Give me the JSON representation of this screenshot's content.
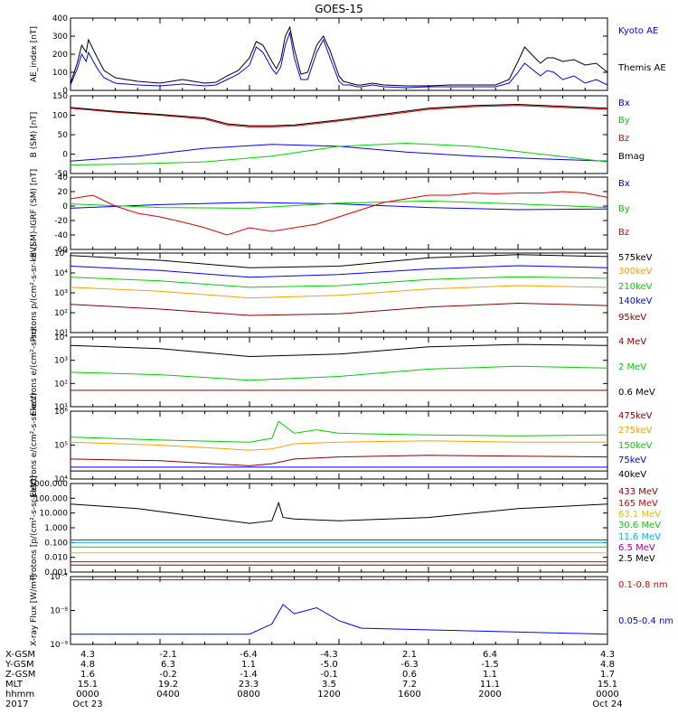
{
  "title": "GOES-15",
  "colors": {
    "black": "#000000",
    "blue": "#0000ff",
    "red": "#e00000",
    "green": "#00d000",
    "orange": "#ffa000",
    "darkred": "#8b0000",
    "cyan": "#00b0ff",
    "yellowgreen": "#a0e000",
    "purple": "#a000a0",
    "brown": "#a06000",
    "darkblue": "#2020c0",
    "gold": "#e0c000"
  },
  "chart_data": [
    {
      "type": "line",
      "ylabel": "AE_index [nT]",
      "ylim": [
        0,
        400
      ],
      "yticks": [
        "400",
        "300",
        "200",
        "100",
        "0"
      ],
      "series": [
        {
          "name": "Kyoto AE",
          "color": "blue",
          "x": [
            0,
            0.3,
            0.5,
            0.7,
            0.8,
            1.2,
            1.5,
            2,
            3,
            4,
            5,
            6,
            6.5,
            7,
            7.5,
            8,
            8.3,
            8.6,
            9,
            9.2,
            9.4,
            9.6,
            9.8,
            10,
            10.3,
            10.6,
            11,
            11.3,
            11.6,
            12,
            12.2,
            12.5,
            12.8,
            13,
            13.5,
            14,
            15,
            16,
            17,
            18,
            19,
            19.6,
            20,
            20.3,
            20.6,
            21,
            21.3,
            21.6,
            22,
            22.5,
            23,
            23.5,
            24
          ],
          "y": [
            30,
            120,
            200,
            160,
            210,
            120,
            70,
            40,
            30,
            25,
            35,
            25,
            30,
            60,
            90,
            140,
            240,
            210,
            120,
            90,
            130,
            250,
            320,
            180,
            60,
            60,
            210,
            280,
            180,
            50,
            30,
            30,
            20,
            20,
            30,
            20,
            15,
            20,
            20,
            20,
            20,
            40,
            100,
            150,
            120,
            80,
            110,
            100,
            60,
            80,
            40,
            60,
            30
          ]
        },
        {
          "name": "Themis AE",
          "color": "black",
          "x": [
            0,
            0.3,
            0.5,
            0.7,
            0.8,
            1.2,
            1.5,
            2,
            3,
            4,
            5,
            6,
            6.5,
            7,
            7.5,
            8,
            8.3,
            8.6,
            9,
            9.2,
            9.4,
            9.6,
            9.8,
            10,
            10.3,
            10.6,
            11,
            11.3,
            11.6,
            12,
            12.2,
            12.5,
            12.8,
            13,
            13.5,
            14,
            15,
            16,
            17,
            18,
            19,
            19.6,
            20,
            20.3,
            20.6,
            21,
            21.3,
            21.6,
            22,
            22.5,
            23,
            23.5,
            24
          ],
          "y": [
            40,
            150,
            250,
            210,
            280,
            180,
            110,
            70,
            50,
            40,
            60,
            40,
            45,
            80,
            110,
            180,
            270,
            250,
            160,
            120,
            170,
            300,
            350,
            230,
            90,
            100,
            250,
            300,
            220,
            80,
            50,
            40,
            30,
            30,
            40,
            30,
            25,
            25,
            30,
            30,
            30,
            60,
            160,
            240,
            200,
            150,
            180,
            180,
            160,
            170,
            140,
            150,
            100
          ]
        }
      ]
    },
    {
      "type": "line",
      "ylabel": "B (SM) [nT]",
      "ylim": [
        -50,
        150
      ],
      "yticks": [
        "150",
        "100",
        "50",
        "0",
        "-50"
      ],
      "series": [
        {
          "name": "Bx",
          "color": "blue",
          "x": [
            0,
            3,
            6,
            9,
            12,
            15,
            18,
            21,
            24
          ],
          "y": [
            -18,
            -5,
            15,
            25,
            20,
            5,
            -5,
            -12,
            -18
          ]
        },
        {
          "name": "By",
          "color": "green",
          "x": [
            0,
            3,
            6,
            9,
            12,
            15,
            18,
            21,
            24
          ],
          "y": [
            -28,
            -25,
            -20,
            -5,
            20,
            28,
            20,
            0,
            -20
          ]
        },
        {
          "name": "Bz",
          "color": "red",
          "x": [
            0,
            2,
            4,
            6,
            7,
            8,
            9,
            10,
            12,
            14,
            16,
            18,
            20,
            22,
            24
          ],
          "y": [
            118,
            108,
            100,
            90,
            75,
            70,
            70,
            72,
            85,
            100,
            115,
            122,
            125,
            120,
            115
          ]
        },
        {
          "name": "Bmag",
          "color": "black",
          "x": [
            0,
            2,
            4,
            6,
            7,
            8,
            9,
            10,
            12,
            14,
            16,
            18,
            20,
            22,
            24
          ],
          "y": [
            120,
            110,
            102,
            93,
            78,
            73,
            73,
            75,
            88,
            103,
            118,
            125,
            128,
            123,
            118
          ]
        }
      ]
    },
    {
      "type": "line",
      "ylabel": "B (SM)-IGRF (SM) [nT]",
      "ylim": [
        -60,
        40
      ],
      "yticks": [
        "40",
        "20",
        "0",
        "-20",
        "-40",
        "-60"
      ],
      "series": [
        {
          "name": "Bx",
          "color": "blue",
          "x": [
            0,
            4,
            8,
            12,
            16,
            20,
            24
          ],
          "y": [
            -3,
            2,
            5,
            3,
            -2,
            -5,
            -4
          ]
        },
        {
          "name": "By",
          "color": "green",
          "x": [
            0,
            4,
            8,
            12,
            16,
            20,
            24
          ],
          "y": [
            3,
            -2,
            -3,
            4,
            7,
            3,
            -2
          ]
        },
        {
          "name": "Bz",
          "color": "red",
          "x": [
            0,
            1,
            2,
            3,
            4,
            5,
            6,
            7,
            8,
            9,
            10,
            11,
            12,
            13,
            14,
            15,
            16,
            17,
            18,
            19,
            20,
            21,
            22,
            23,
            24
          ],
          "y": [
            10,
            15,
            0,
            -10,
            -15,
            -22,
            -30,
            -40,
            -30,
            -35,
            -30,
            -25,
            -15,
            -5,
            5,
            10,
            15,
            15,
            18,
            17,
            18,
            18,
            20,
            18,
            12
          ]
        }
      ]
    },
    {
      "type": "line",
      "ylabel": "Protons p/(cm²-s-sr-keV)",
      "yscale": "log",
      "ylim": [
        1,
        100000
      ],
      "yticks": [
        "10⁵",
        "10⁴",
        "10³",
        "10²",
        "10¹"
      ],
      "series": [
        {
          "name": "575keV",
          "color": "black",
          "x": [
            0,
            4,
            8,
            12,
            16,
            20,
            24
          ],
          "y": [
            70000,
            35000,
            12000,
            15000,
            50000,
            80000,
            60000
          ]
        },
        {
          "name": "300keV",
          "color": "orange",
          "x": [
            0,
            4,
            8,
            12,
            16,
            20,
            24
          ],
          "y": [
            700,
            400,
            150,
            220,
            550,
            900,
            700
          ]
        },
        {
          "name": "210keV",
          "color": "green",
          "x": [
            0,
            4,
            8,
            12,
            16,
            20,
            24
          ],
          "y": [
            3000,
            1800,
            700,
            900,
            2200,
            3200,
            2600
          ]
        },
        {
          "name": "140keV",
          "color": "blue",
          "x": [
            0,
            4,
            8,
            12,
            16,
            20,
            24
          ],
          "y": [
            15000,
            8000,
            3000,
            4500,
            10000,
            16000,
            12000
          ]
        },
        {
          "name": "95keV",
          "color": "darkred",
          "x": [
            0,
            4,
            8,
            12,
            16,
            20,
            24
          ],
          "y": [
            60,
            30,
            12,
            15,
            40,
            70,
            50
          ]
        }
      ]
    },
    {
      "type": "line",
      "ylabel": "Electrons e/(cm²-s-sr)",
      "yscale": "log",
      "ylim": [
        1,
        100000
      ],
      "yticks": [
        "10⁴",
        "10³",
        "10²",
        "10¹"
      ],
      "series": [
        {
          "name": "4 MeV",
          "color": "darkred",
          "x": [
            0,
            24
          ],
          "y": [
            15,
            15
          ]
        },
        {
          "name": "2 MeV",
          "color": "green",
          "x": [
            0,
            4,
            8,
            12,
            16,
            20,
            24
          ],
          "y": [
            300,
            200,
            80,
            150,
            500,
            800,
            600
          ]
        },
        {
          "name": "0.6 MeV",
          "color": "black",
          "x": [
            0,
            4,
            8,
            12,
            16,
            20,
            24
          ],
          "y": [
            25000,
            15000,
            4000,
            6000,
            20000,
            30000,
            25000
          ]
        }
      ]
    },
    {
      "type": "line",
      "ylabel": "Electrons e/(cm²-s-sr-keV)",
      "yscale": "log",
      "ylim": [
        1000,
        10000000
      ],
      "yticks": [
        "10⁶",
        "10⁵",
        "10⁴"
      ],
      "series": [
        {
          "name": "475keV",
          "color": "darkred",
          "x": [
            0,
            4,
            8,
            9,
            10,
            12,
            16,
            20,
            24
          ],
          "y": [
            15000,
            12000,
            6000,
            8000,
            15000,
            20000,
            25000,
            22000,
            20000
          ]
        },
        {
          "name": "275keV",
          "color": "orange",
          "x": [
            0,
            4,
            8,
            9,
            10,
            12,
            16,
            20,
            24
          ],
          "y": [
            150000,
            100000,
            50000,
            60000,
            120000,
            150000,
            180000,
            150000,
            150000
          ]
        },
        {
          "name": "150keV",
          "color": "green",
          "x": [
            0,
            4,
            8,
            9,
            9.3,
            10,
            11,
            12,
            16,
            20,
            24
          ],
          "y": [
            300000,
            200000,
            150000,
            250000,
            2500000,
            500000,
            800000,
            500000,
            400000,
            350000,
            400000
          ]
        },
        {
          "name": "75keV",
          "color": "blue",
          "x": [
            0,
            24
          ],
          "y": [
            5000,
            5000
          ]
        },
        {
          "name": "40keV",
          "color": "black",
          "x": [
            0,
            24
          ],
          "y": [
            3000,
            3000
          ]
        }
      ]
    },
    {
      "type": "line",
      "ylabel": "Protons [p/(cm²-s-sr-keV)]",
      "yscale": "log",
      "ylim": [
        0.001,
        1000
      ],
      "yticks": [
        "1000.000",
        "100.000",
        "10.000",
        "1.000",
        "0.100",
        "0.010",
        "0.001"
      ],
      "series": [
        {
          "name": "433 MeV",
          "color": "darkred",
          "x": [
            0,
            24
          ],
          "y": [
            0.003,
            0.003
          ]
        },
        {
          "name": "165 MeV",
          "color": "red",
          "x": [
            0,
            24
          ],
          "y": [
            0.005,
            0.005
          ]
        },
        {
          "name": "63.1 MeV",
          "color": "gold",
          "x": [
            0,
            24
          ],
          "y": [
            0.02,
            0.02
          ]
        },
        {
          "name": "30.6 MeV",
          "color": "green",
          "x": [
            0,
            24
          ],
          "y": [
            0.05,
            0.05
          ]
        },
        {
          "name": "11.6 MeV",
          "color": "cyan",
          "x": [
            0,
            24
          ],
          "y": [
            0.1,
            0.1
          ]
        },
        {
          "name": "6.5 MeV",
          "color": "purple",
          "x": [
            0,
            24
          ],
          "y": [
            0.15,
            0.15
          ]
        },
        {
          "name": "2.5 MeV",
          "color": "black",
          "x": [
            0,
            3,
            6,
            8,
            9,
            9.3,
            9.5,
            10,
            12,
            16,
            20,
            24
          ],
          "y": [
            40,
            20,
            5,
            2,
            3,
            50,
            5,
            4,
            3,
            5,
            20,
            40
          ]
        }
      ]
    },
    {
      "type": "line",
      "ylabel": "X-ray Flux [W/m²]",
      "yscale": "log",
      "ylim": [
        1e-09,
        1e-07
      ],
      "yticks": [
        "10⁻⁷",
        "10⁻⁸",
        "10⁻⁹"
      ],
      "series": [
        {
          "name": "0.1-0.8 nm",
          "color": "red",
          "x": [
            0,
            24
          ],
          "y": [
            8e-08,
            8e-08
          ]
        },
        {
          "name": "0.05-0.4 nm",
          "color": "blue",
          "x": [
            0,
            8,
            9,
            9.5,
            10,
            11,
            12,
            13,
            24
          ],
          "y": [
            2e-09,
            2e-09,
            4e-09,
            1.5e-08,
            8e-09,
            1.2e-08,
            5e-09,
            3e-09,
            2e-09
          ]
        }
      ]
    }
  ],
  "footer": {
    "rows": [
      {
        "label": "X-GSM",
        "values": [
          "4.3",
          "-2.1",
          "-6.4",
          "-4.3",
          "2.1",
          "6.4",
          "4.3"
        ]
      },
      {
        "label": "Y-GSM",
        "values": [
          "4.8",
          "6.3",
          "1.1",
          "-5.0",
          "-6.3",
          "-1.5",
          "4.8"
        ]
      },
      {
        "label": "Z-GSM",
        "values": [
          "1.6",
          "-0.2",
          "-1.4",
          "-0.1",
          "0.6",
          "1.1",
          "1.7"
        ]
      },
      {
        "label": "MLT",
        "values": [
          "15.1",
          "19.2",
          "23.3",
          "3.5",
          "7.2",
          "11.1",
          "15.1"
        ]
      },
      {
        "label": "hhmm",
        "values": [
          "0000",
          "0400",
          "0800",
          "1200",
          "1600",
          "2000",
          "0000"
        ]
      },
      {
        "label": "2017",
        "values": [
          "Oct 23",
          "",
          "",
          "",
          "",
          "",
          "Oct 24"
        ]
      }
    ]
  }
}
